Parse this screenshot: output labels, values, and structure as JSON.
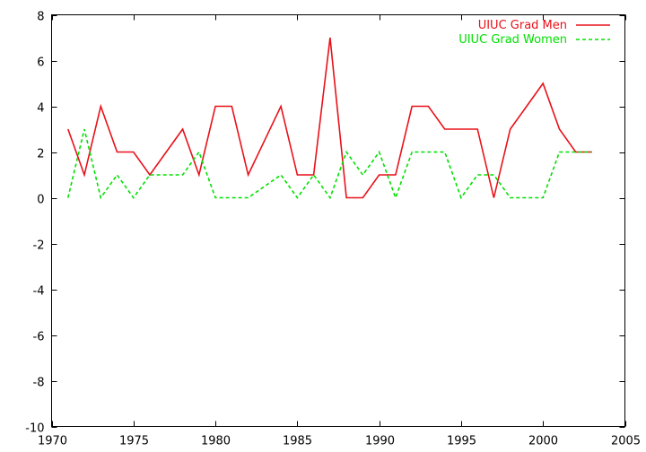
{
  "chart_data": {
    "type": "line",
    "title": "",
    "xlabel": "",
    "ylabel": "",
    "xlim": [
      1970,
      2005
    ],
    "ylim": [
      -10,
      8
    ],
    "x_ticks": [
      1970,
      1975,
      1980,
      1985,
      1990,
      1995,
      2000,
      2005
    ],
    "y_ticks": [
      -10,
      -8,
      -6,
      -4,
      -2,
      0,
      2,
      4,
      6,
      8
    ],
    "grid": false,
    "legend_position": "top-right",
    "series": [
      {
        "name": "UIUC Grad Men",
        "color": "#e8111a",
        "dash": "solid",
        "x": [
          1971,
          1972,
          1973,
          1974,
          1975,
          1976,
          1977,
          1978,
          1979,
          1980,
          1981,
          1982,
          1983,
          1984,
          1985,
          1986,
          1987,
          1988,
          1989,
          1990,
          1991,
          1992,
          1993,
          1994,
          1995,
          1996,
          1997,
          1998,
          1999,
          2000,
          2001,
          2002,
          2003
        ],
        "y": [
          3,
          1,
          4,
          2,
          2,
          1,
          2,
          3,
          1,
          4,
          4,
          1,
          2.5,
          4,
          1,
          1,
          7,
          0,
          0,
          1,
          1,
          4,
          4,
          3,
          3,
          3,
          0,
          3,
          4,
          5,
          3,
          2,
          2
        ]
      },
      {
        "name": "UIUC Grad Women",
        "color": "#00e000",
        "dash": "dashed",
        "x": [
          1971,
          1972,
          1973,
          1974,
          1975,
          1976,
          1977,
          1978,
          1979,
          1980,
          1981,
          1982,
          1983,
          1984,
          1985,
          1986,
          1987,
          1988,
          1989,
          1990,
          1991,
          1992,
          1993,
          1994,
          1995,
          1996,
          1997,
          1998,
          1999,
          2000,
          2001,
          2002,
          2003
        ],
        "y": [
          0,
          3,
          0,
          1,
          0,
          1,
          1,
          1,
          2,
          0,
          0,
          0,
          0.5,
          1,
          0,
          1,
          0,
          2,
          1,
          2,
          0,
          2,
          2,
          2,
          0,
          1,
          1,
          0,
          0,
          0,
          2,
          2,
          2
        ]
      }
    ]
  }
}
